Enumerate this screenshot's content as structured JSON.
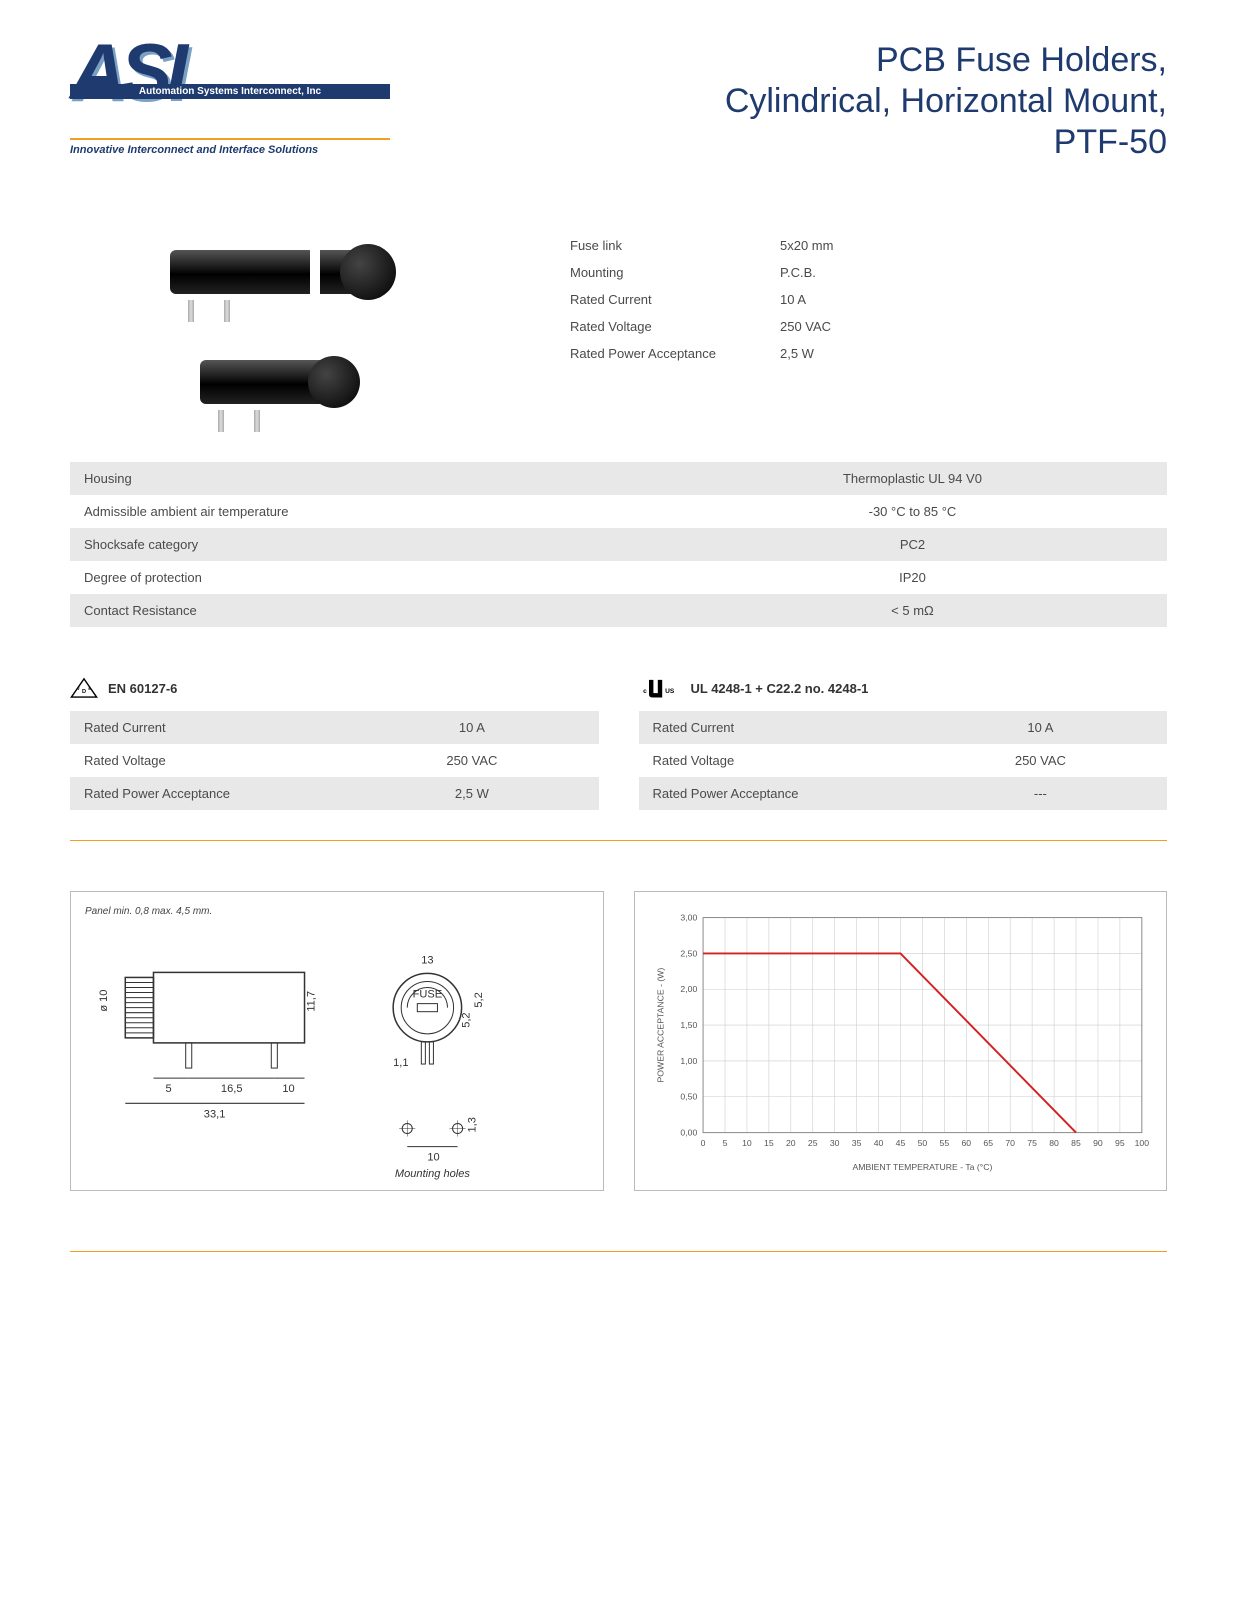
{
  "logo": {
    "main": "ASI",
    "bar": "Automation Systems Interconnect, Inc",
    "tagline": "Innovative Interconnect and Interface Solutions"
  },
  "title": {
    "line1": "PCB Fuse Holders,",
    "line2": "Cylindrical, Horizontal Mount,",
    "line3": "PTF-50"
  },
  "mini_specs": [
    {
      "label": "Fuse link",
      "value": "5x20 mm"
    },
    {
      "label": "Mounting",
      "value": "P.C.B."
    },
    {
      "label": "Rated Current",
      "value": "10 A"
    },
    {
      "label": "Rated Voltage",
      "value": "250 VAC"
    },
    {
      "label": "Rated Power Acceptance",
      "value": "2,5 W"
    }
  ],
  "full_specs": [
    {
      "label": "Housing",
      "value": "Thermoplastic UL 94 V0",
      "shade": true
    },
    {
      "label": "Admissible ambient air temperature",
      "value": "-30 °C to 85 °C",
      "shade": false
    },
    {
      "label": "Shocksafe category",
      "value": "PC2",
      "shade": true
    },
    {
      "label": "Degree of protection",
      "value": "IP20",
      "shade": false
    },
    {
      "label": "Contact Resistance",
      "value": "< 5 mΩ",
      "shade": true
    }
  ],
  "cert_left": {
    "title": "EN 60127-6",
    "rows": [
      {
        "label": "Rated Current",
        "value": "10 A",
        "shade": true
      },
      {
        "label": "Rated Voltage",
        "value": "250 VAC",
        "shade": false
      },
      {
        "label": "Rated Power Acceptance",
        "value": "2,5 W",
        "shade": true
      }
    ]
  },
  "cert_right": {
    "title": "UL 4248-1 + C22.2 no. 4248-1",
    "rows": [
      {
        "label": "Rated Current",
        "value": "10 A",
        "shade": true
      },
      {
        "label": "Rated Voltage",
        "value": "250 VAC",
        "shade": false
      },
      {
        "label": "Rated Power Acceptance",
        "value": "---",
        "shade": true
      }
    ]
  },
  "diagram": {
    "note": "Panel min. 0,8 max. 4,5 mm.",
    "mounting_label": "Mounting holes",
    "dims": {
      "d1": "ø 10",
      "d2": "5",
      "d3": "16,5",
      "d4": "10",
      "d5": "33,1",
      "d6": "11,7",
      "d7": "13",
      "d8": "1,1",
      "d9": "5,2",
      "d10": "5,2",
      "d11": "10",
      "d12": "1,3",
      "fuse": "FUSE"
    }
  },
  "chart": {
    "type": "line",
    "title_x": "AMBIENT TEMPERATURE - Ta (°C)",
    "title_y": "POWER ACCEPTANCE - (W)",
    "xlim": [
      0,
      100
    ],
    "ylim": [
      0,
      3.0
    ],
    "xtick_step": 5,
    "ytick_step": 0.5,
    "yticks": [
      "0,00",
      "0,50",
      "1,00",
      "1,50",
      "2,00",
      "2,50",
      "3,00"
    ],
    "line_color": "#d42020",
    "grid_color": "#cccccc",
    "background": "#ffffff",
    "line_width": 2,
    "points": [
      {
        "x": 0,
        "y": 2.5
      },
      {
        "x": 45,
        "y": 2.5
      },
      {
        "x": 85,
        "y": 0
      }
    ]
  }
}
